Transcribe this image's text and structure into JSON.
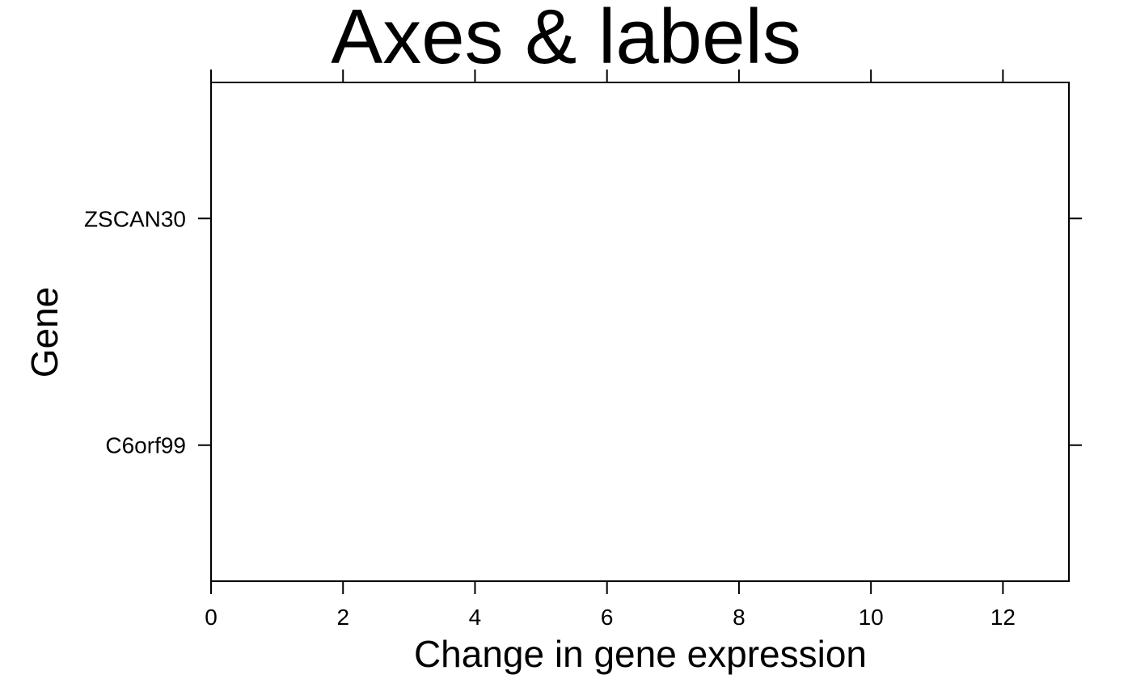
{
  "chart_data": {
    "type": "scatter",
    "title": "Axes & labels",
    "xlabel": "Change in gene expression",
    "ylabel": "Gene",
    "xlim": [
      0,
      13
    ],
    "x_ticks": [
      0,
      2,
      4,
      6,
      8,
      10,
      12
    ],
    "x_tick_labels": [
      "0",
      "2",
      "4",
      "6",
      "8",
      "10",
      "12"
    ],
    "categories": [
      "C6orf99",
      "ZSCAN30"
    ],
    "series": [],
    "grid": false,
    "legend": "none",
    "colors": {
      "background": "#ffffff",
      "axis": "#000000",
      "text": "#000000"
    }
  }
}
